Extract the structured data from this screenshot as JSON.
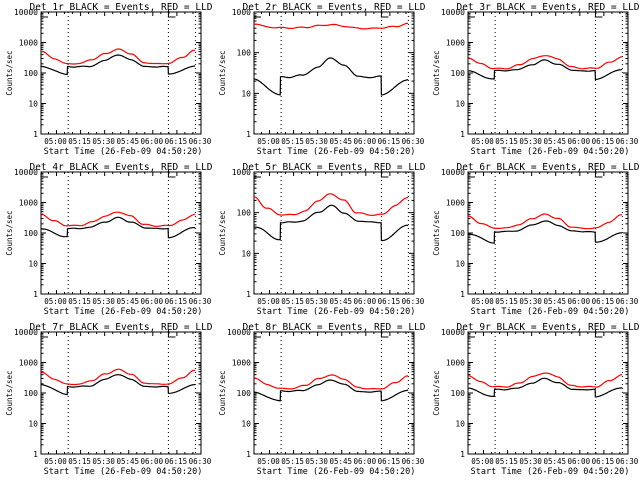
{
  "figure": {
    "time_ticks": [
      "05:00",
      "05:15",
      "05:30",
      "05:45",
      "06:00",
      "06:15",
      "06:30"
    ],
    "xlabel": "Start Time (26-Feb-09 04:50:20)",
    "ylabel": "Counts/sec",
    "colors": {
      "events": "#000000",
      "lld": "#ff0000"
    }
  },
  "chart_data": [
    {
      "type": "line",
      "title": "Det 1r BLACK = Events, RED = LLD",
      "xlabel": "Start Time (26-Feb-09 04:50:20)",
      "ylabel": "Counts/sec",
      "yscale": "log",
      "ylim": [
        1,
        10000
      ],
      "ytick_labels": [
        "1",
        "10",
        "100",
        "1000",
        "10000"
      ],
      "xtick_labels": [
        "05:00",
        "05:15",
        "05:30",
        "05:45",
        "06:00",
        "06:15",
        "06:30"
      ],
      "xlim_minutes_after_start": [
        0,
        99.7
      ],
      "vlines_minutes": [
        16.9,
        79.4,
        96.2
      ],
      "series": [
        {
          "name": "Events",
          "color": "#000000",
          "x": [
            0,
            16.3,
            16.5,
            22,
            30,
            40,
            48,
            56,
            65,
            72,
            79.2,
            79.4,
            96
          ],
          "y": [
            166,
            90,
            160,
            160,
            165,
            260,
            400,
            270,
            165,
            160,
            160,
            90,
            170
          ]
        },
        {
          "name": "LLD",
          "color": "#ff0000",
          "x": [
            0,
            8,
            16,
            24,
            32,
            40,
            48,
            56,
            64,
            72,
            80,
            88,
            96
          ],
          "y": [
            520,
            300,
            200,
            205,
            280,
            430,
            600,
            430,
            220,
            200,
            210,
            330,
            550
          ]
        }
      ]
    },
    {
      "type": "line",
      "title": "Det 2r BLACK = Events, RED = LLD",
      "xlabel": "Start Time (26-Feb-09 04:50:20)",
      "ylabel": "Counts/sec",
      "yscale": "log",
      "ylim": [
        1,
        1000
      ],
      "ytick_labels": [
        "1",
        "10",
        "100",
        "1000"
      ],
      "xtick_labels": [
        "05:00",
        "05:15",
        "05:30",
        "05:45",
        "06:00",
        "06:15",
        "06:30"
      ],
      "xlim_minutes_after_start": [
        0,
        99.7
      ],
      "vlines_minutes": [
        16.9,
        79.4,
        96.2
      ],
      "series": [
        {
          "name": "Events",
          "color": "#000000",
          "x": [
            0,
            16.3,
            16.5,
            22,
            30,
            40,
            48,
            56,
            65,
            72,
            79.2,
            79.4,
            96
          ],
          "y": [
            22,
            9,
            25,
            25,
            28,
            45,
            75,
            48,
            27,
            25,
            26,
            9,
            22
          ]
        },
        {
          "name": "LLD",
          "color": "#ff0000",
          "x": [
            0,
            8,
            16,
            24,
            32,
            40,
            48,
            56,
            64,
            72,
            80,
            88,
            96
          ],
          "y": [
            520,
            430,
            410,
            405,
            420,
            460,
            490,
            450,
            400,
            390,
            410,
            440,
            520
          ]
        }
      ]
    },
    {
      "type": "line",
      "title": "Det 3r BLACK = Events, RED = LLD",
      "xlabel": "Start Time (26-Feb-09 04:50:20)",
      "ylabel": "Counts/sec",
      "yscale": "log",
      "ylim": [
        1,
        10000
      ],
      "ytick_labels": [
        "1",
        "10",
        "100",
        "1000",
        "10000"
      ],
      "xtick_labels": [
        "05:00",
        "05:15",
        "05:30",
        "05:45",
        "06:00",
        "06:15",
        "06:30"
      ],
      "xlim_minutes_after_start": [
        0,
        99.7
      ],
      "vlines_minutes": [
        16.9,
        79.4,
        96.2
      ],
      "series": [
        {
          "name": "Events",
          "color": "#000000",
          "x": [
            0,
            16.3,
            16.5,
            22,
            30,
            40,
            48,
            56,
            65,
            72,
            79.2,
            79.4,
            96
          ],
          "y": [
            115,
            62,
            120,
            120,
            125,
            190,
            265,
            190,
            125,
            118,
            118,
            62,
            130
          ]
        },
        {
          "name": "LLD",
          "color": "#ff0000",
          "x": [
            0,
            8,
            16,
            24,
            32,
            40,
            48,
            56,
            64,
            72,
            80,
            88,
            96
          ],
          "y": [
            320,
            200,
            140,
            140,
            185,
            290,
            380,
            290,
            160,
            140,
            145,
            220,
            340
          ]
        }
      ]
    },
    {
      "type": "line",
      "title": "Det 4r BLACK = Events, RED = LLD",
      "xlabel": "Start Time (26-Feb-09 04:50:20)",
      "ylabel": "Counts/sec",
      "yscale": "log",
      "ylim": [
        1,
        10000
      ],
      "ytick_labels": [
        "1",
        "10",
        "100",
        "1000",
        "10000"
      ],
      "xtick_labels": [
        "05:00",
        "05:15",
        "05:30",
        "05:45",
        "06:00",
        "06:15",
        "06:30"
      ],
      "xlim_minutes_after_start": [
        0,
        99.7
      ],
      "vlines_minutes": [
        16.9,
        79.4,
        96.2
      ],
      "series": [
        {
          "name": "Events",
          "color": "#000000",
          "x": [
            0,
            16.3,
            16.5,
            22,
            30,
            40,
            48,
            56,
            65,
            72,
            79.2,
            79.4,
            96
          ],
          "y": [
            135,
            75,
            140,
            140,
            150,
            230,
            320,
            230,
            145,
            140,
            140,
            72,
            150
          ]
        },
        {
          "name": "LLD",
          "color": "#ff0000",
          "x": [
            0,
            8,
            16,
            24,
            32,
            40,
            48,
            56,
            64,
            72,
            80,
            88,
            96
          ],
          "y": [
            420,
            250,
            175,
            175,
            230,
            360,
            490,
            360,
            190,
            170,
            175,
            260,
            420
          ]
        }
      ]
    },
    {
      "type": "line",
      "title": "Det 5r BLACK = Events, RED = LLD",
      "xlabel": "Start Time (26-Feb-09 04:50:20)",
      "ylabel": "Counts/sec",
      "yscale": "log",
      "ylim": [
        1,
        1000
      ],
      "ytick_labels": [
        "1",
        "10",
        "100",
        "1000"
      ],
      "xtick_labels": [
        "05:00",
        "05:15",
        "05:30",
        "05:45",
        "06:00",
        "06:15",
        "06:30"
      ],
      "xlim_minutes_after_start": [
        0,
        99.7
      ],
      "vlines_minutes": [
        16.9,
        79.4,
        96.2
      ],
      "series": [
        {
          "name": "Events",
          "color": "#000000",
          "x": [
            0,
            16.3,
            16.5,
            22,
            30,
            40,
            48,
            56,
            65,
            72,
            79.2,
            79.4,
            96
          ],
          "y": [
            45,
            22,
            58,
            58,
            62,
            100,
            150,
            100,
            60,
            58,
            58,
            21,
            48
          ]
        },
        {
          "name": "LLD",
          "color": "#ff0000",
          "x": [
            0,
            8,
            16,
            24,
            32,
            40,
            48,
            56,
            64,
            72,
            80,
            88,
            96
          ],
          "y": [
            240,
            130,
            90,
            88,
            110,
            200,
            290,
            200,
            100,
            88,
            90,
            150,
            240
          ]
        }
      ]
    },
    {
      "type": "line",
      "title": "Det 6r BLACK = Events, RED = LLD",
      "xlabel": "Start Time (26-Feb-09 04:50:20)",
      "ylabel": "Counts/sec",
      "yscale": "log",
      "ylim": [
        1,
        10000
      ],
      "ytick_labels": [
        "1",
        "10",
        "100",
        "1000",
        "10000"
      ],
      "xtick_labels": [
        "05:00",
        "05:15",
        "05:30",
        "05:45",
        "06:00",
        "06:15",
        "06:30"
      ],
      "xlim_minutes_after_start": [
        0,
        99.7
      ],
      "vlines_minutes": [
        16.9,
        79.4,
        96.2
      ],
      "series": [
        {
          "name": "Events",
          "color": "#000000",
          "x": [
            0,
            16.3,
            16.5,
            22,
            30,
            40,
            48,
            56,
            65,
            72,
            79.2,
            79.4,
            96
          ],
          "y": [
            95,
            48,
            110,
            110,
            118,
            180,
            250,
            180,
            115,
            108,
            110,
            50,
            100
          ]
        },
        {
          "name": "LLD",
          "color": "#ff0000",
          "x": [
            0,
            8,
            16,
            24,
            32,
            40,
            48,
            56,
            64,
            72,
            80,
            88,
            96
          ],
          "y": [
            350,
            210,
            145,
            145,
            190,
            300,
            410,
            300,
            160,
            140,
            145,
            230,
            400
          ]
        }
      ]
    },
    {
      "type": "line",
      "title": "Det 7r BLACK = Events, RED = LLD",
      "xlabel": "Start Time (26-Feb-09 04:50:20)",
      "ylabel": "Counts/sec",
      "yscale": "log",
      "ylim": [
        1,
        10000
      ],
      "ytick_labels": [
        "1",
        "10",
        "100",
        "1000",
        "10000"
      ],
      "xtick_labels": [
        "05:00",
        "05:15",
        "05:30",
        "05:45",
        "06:00",
        "06:15",
        "06:30"
      ],
      "xlim_minutes_after_start": [
        0,
        99.7
      ],
      "vlines_minutes": [
        16.9,
        79.4,
        96.2
      ],
      "series": [
        {
          "name": "Events",
          "color": "#000000",
          "x": [
            0,
            16.3,
            16.5,
            22,
            30,
            40,
            48,
            56,
            65,
            72,
            79.2,
            79.4,
            96
          ],
          "y": [
            190,
            90,
            160,
            160,
            170,
            280,
            410,
            280,
            165,
            160,
            160,
            95,
            190
          ]
        },
        {
          "name": "LLD",
          "color": "#ff0000",
          "x": [
            0,
            8,
            16,
            24,
            32,
            40,
            48,
            56,
            64,
            72,
            80,
            88,
            96
          ],
          "y": [
            480,
            290,
            195,
            195,
            260,
            420,
            590,
            420,
            215,
            195,
            200,
            320,
            550
          ]
        }
      ]
    },
    {
      "type": "line",
      "title": "Det 8r BLACK = Events, RED = LLD",
      "xlabel": "Start Time (26-Feb-09 04:50:20)",
      "ylabel": "Counts/sec",
      "yscale": "log",
      "ylim": [
        1,
        10000
      ],
      "ytick_labels": [
        "1",
        "10",
        "100",
        "1000",
        "10000"
      ],
      "xtick_labels": [
        "05:00",
        "05:15",
        "05:30",
        "05:45",
        "06:00",
        "06:15",
        "06:30"
      ],
      "xlim_minutes_after_start": [
        0,
        99.7
      ],
      "vlines_minutes": [
        16.9,
        79.4,
        96.2
      ],
      "series": [
        {
          "name": "Events",
          "color": "#000000",
          "x": [
            0,
            16.3,
            16.5,
            22,
            30,
            40,
            48,
            56,
            65,
            72,
            79.2,
            79.4,
            96
          ],
          "y": [
            105,
            55,
            115,
            115,
            120,
            190,
            270,
            190,
            115,
            110,
            112,
            55,
            125
          ]
        },
        {
          "name": "LLD",
          "color": "#ff0000",
          "x": [
            0,
            8,
            16,
            24,
            32,
            40,
            48,
            56,
            64,
            72,
            80,
            88,
            96
          ],
          "y": [
            320,
            190,
            140,
            140,
            180,
            290,
            390,
            290,
            155,
            135,
            140,
            220,
            360
          ]
        }
      ]
    },
    {
      "type": "line",
      "title": "Det 9r BLACK = Events, RED = LLD",
      "xlabel": "Start Time (26-Feb-09 04:50:20)",
      "ylabel": "Counts/sec",
      "yscale": "log",
      "ylim": [
        1,
        10000
      ],
      "ytick_labels": [
        "1",
        "10",
        "100",
        "1000",
        "10000"
      ],
      "xtick_labels": [
        "05:00",
        "05:15",
        "05:30",
        "05:45",
        "06:00",
        "06:15",
        "06:30"
      ],
      "xlim_minutes_after_start": [
        0,
        99.7
      ],
      "vlines_minutes": [
        16.9,
        79.4,
        96.2
      ],
      "series": [
        {
          "name": "Events",
          "color": "#000000",
          "x": [
            0,
            16.3,
            16.5,
            22,
            30,
            40,
            48,
            56,
            65,
            72,
            79.2,
            79.4,
            96
          ],
          "y": [
            140,
            75,
            130,
            130,
            140,
            215,
            300,
            215,
            135,
            130,
            130,
            75,
            150
          ]
        },
        {
          "name": "LLD",
          "color": "#ff0000",
          "x": [
            0,
            8,
            16,
            24,
            32,
            40,
            48,
            56,
            64,
            72,
            80,
            88,
            96
          ],
          "y": [
            380,
            230,
            160,
            160,
            210,
            340,
            460,
            340,
            175,
            160,
            160,
            250,
            400
          ]
        }
      ]
    }
  ]
}
